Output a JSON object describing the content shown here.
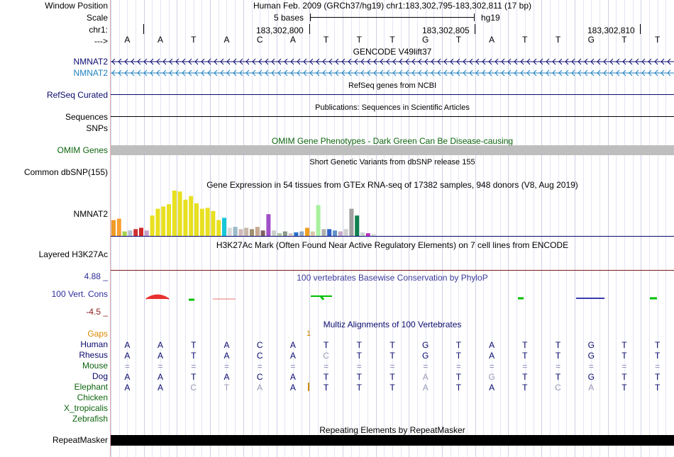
{
  "labels": {
    "window_position": "Window Position",
    "scale": "Scale",
    "chrom": "chr1:",
    "strand": "--->",
    "gene1": "NMNAT2",
    "gene2": "NMNAT2",
    "refseq": "RefSeq Curated",
    "sequences": "Sequences",
    "snps": "SNPs",
    "omim": "OMIM Genes",
    "dbsnp": "Common dbSNP(155)",
    "gtex": "NMNAT2",
    "h3k27ac": "Layered H3K27Ac",
    "cons_top": "4.88 _",
    "cons": "100 Vert. Cons",
    "cons_bot": "-4.5 _",
    "gaps": "Gaps",
    "species": [
      "Human",
      "Rhesus",
      "Mouse",
      "Dog",
      "Elephant",
      "Chicken",
      "X_tropicalis",
      "Zebrafish"
    ],
    "repeatmasker": "RepeatMasker"
  },
  "header": {
    "assembly": "Human Feb. 2009 (GRCh37/hg19)   chr1:183,302,795-183,302,811 (17 bp)",
    "scale_text": "5 bases",
    "scale_asm": "hg19",
    "positions": [
      "183,302,800",
      "183,302,805",
      "183,302,810"
    ],
    "bases": [
      "A",
      "A",
      "T",
      "A",
      "C",
      "A",
      "T",
      "T",
      "T",
      "G",
      "T",
      "A",
      "T",
      "T",
      "G",
      "T",
      "T"
    ]
  },
  "titles": {
    "gencode": "GENCODE V49lift37",
    "refseq": "RefSeq genes from NCBI",
    "pubs": "Publications: Sequences in Scientific Articles",
    "omim": "OMIM Gene Phenotypes - Dark Green Can Be Disease-causing",
    "dbsnp": "Short Genetic Variants from dbSNP release 155",
    "gtex": "Gene Expression in 54 tissues from GTEx RNA-seq of 17382 samples, 948 donors (V8, Aug 2019)",
    "h3k27ac": "H3K27Ac Mark (Often Found Near Active Regulatory Elements) on 7 cell lines from ENCODE",
    "cons": "100 vertebrates Basewise Conservation by PhyloP",
    "multiz": "Multiz Alignments of 100 Vertebrates",
    "rmsk": "Repeating Elements by RepeatMasker"
  },
  "gaps_marker": "1",
  "alignment": {
    "Human": [
      "A",
      "A",
      "T",
      "A",
      "C",
      "A",
      "T",
      "T",
      "T",
      "G",
      "T",
      "A",
      "T",
      "T",
      "G",
      "T",
      "T"
    ],
    "Rhesus": [
      "A",
      "A",
      "T",
      "A",
      "C",
      "A",
      "C",
      "T",
      "T",
      "G",
      "T",
      "A",
      "T",
      "T",
      "G",
      "T",
      "T"
    ],
    "Mouse": [
      "=",
      "=",
      "=",
      "=",
      "=",
      "=",
      "=",
      "=",
      "=",
      "=",
      "=",
      "=",
      "=",
      "=",
      "=",
      "=",
      "="
    ],
    "Dog": [
      "A",
      "A",
      "T",
      "A",
      "C",
      "A",
      "T",
      "T",
      "T",
      "A",
      "T",
      "G",
      "T",
      "T",
      "G",
      "T",
      "T"
    ],
    "Elephant": [
      "A",
      "A",
      "C",
      "T",
      "A",
      "A",
      "T",
      "T",
      "T",
      "A",
      "T",
      "A",
      "T",
      "C",
      "A",
      "T",
      "T"
    ]
  },
  "alignment_mismatch": {
    "Rhesus": [
      6
    ],
    "Dog": [
      9,
      11
    ],
    "Elephant": [
      2,
      3,
      4,
      9,
      13,
      14
    ]
  },
  "gtex_values": [
    0.35,
    0.38,
    0.1,
    0.12,
    0.15,
    0.18,
    0.12,
    0.45,
    0.6,
    0.65,
    0.7,
    1.0,
    0.98,
    0.8,
    0.88,
    0.72,
    0.6,
    0.62,
    0.55,
    0.35,
    0.4,
    0.18,
    0.2,
    0.15,
    0.18,
    0.15,
    0.2,
    0.12,
    0.48,
    0.12,
    0.06,
    0.1,
    0.06,
    0.08,
    0.1,
    0.18,
    0.1,
    0.68,
    0.15,
    0.15,
    0.12,
    0.1,
    0.15,
    0.6,
    0.45,
    0.08,
    0.06,
    0.04
  ],
  "gtex_colors": [
    "#f09a28",
    "#f8a030",
    "#a6d44a",
    "#b4bcd4",
    "#d03030",
    "#d02828",
    "#c8a0c8",
    "#e8e020",
    "#e8e020",
    "#e8e020",
    "#e8e020",
    "#e8e020",
    "#e8e020",
    "#e8e020",
    "#e8e020",
    "#e8e020",
    "#e8e020",
    "#e8e020",
    "#e8e020",
    "#e8e020",
    "#18c8d8",
    "#d8d8d8",
    "#99b8c8",
    "#d0b8b8",
    "#c8b8a8",
    "#a09070",
    "#c8a890",
    "#806060",
    "#a050c8",
    "#c8d0c8",
    "#b0c8a0",
    "#889988",
    "#d8c8c0",
    "#2870c8",
    "#90a8c8",
    "#f0a020",
    "#d8c8a8",
    "#a8f0a0",
    "#b0b0b0",
    "#3060c8",
    "#6090c8",
    "#c8a8c8",
    "#d0d0d0",
    "#a0a0a0",
    "#108050",
    "#c8d8d0",
    "#c030c0",
    "#d8d8d8"
  ]
}
